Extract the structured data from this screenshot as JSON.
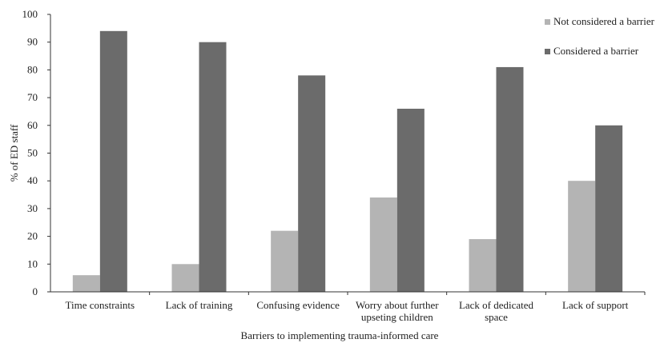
{
  "chart_data": {
    "type": "bar",
    "categories": [
      [
        "Time constraints"
      ],
      [
        "Lack of training"
      ],
      [
        "Confusing evidence"
      ],
      [
        "Worry about further",
        "upseting children"
      ],
      [
        "Lack of dedicated",
        "space"
      ],
      [
        "Lack of support"
      ]
    ],
    "series": [
      {
        "name": "Not considered a barrier",
        "color": "#b4b4b4",
        "values": [
          6,
          10,
          22,
          34,
          19,
          40
        ]
      },
      {
        "name": "Considered a barrier",
        "color": "#6b6b6b",
        "values": [
          94,
          90,
          78,
          66,
          81,
          60
        ]
      }
    ],
    "title": "",
    "xlabel": "Barriers to implementing trauma-informed care",
    "ylabel": "% of ED staff",
    "ylim": [
      0,
      100
    ],
    "yticks": [
      0,
      10,
      20,
      30,
      40,
      50,
      60,
      70,
      80,
      90,
      100
    ],
    "grid": false,
    "legend_position": "top-right"
  }
}
